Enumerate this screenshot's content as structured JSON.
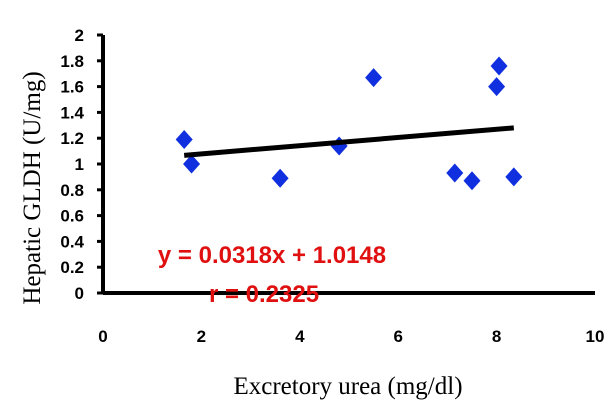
{
  "chart_data": {
    "type": "scatter",
    "xlabel": "Excretory urea (mg/dl)",
    "ylabel": "Hepatic GLDH (U/mg)",
    "xlim": [
      0,
      10
    ],
    "ylim": [
      0,
      2
    ],
    "x_ticks": [
      "0",
      "2",
      "4",
      "6",
      "8",
      "10"
    ],
    "y_ticks": [
      "0",
      "0.2",
      "0.4",
      "0.6",
      "0.8",
      "1",
      "1.2",
      "1.4",
      "1.6",
      "1.8",
      "2"
    ],
    "series": [
      {
        "marker": "diamond",
        "color": "#1030e0",
        "points": [
          {
            "x": 1.65,
            "y": 1.19
          },
          {
            "x": 1.8,
            "y": 1.0
          },
          {
            "x": 3.6,
            "y": 0.89
          },
          {
            "x": 4.8,
            "y": 1.14
          },
          {
            "x": 5.5,
            "y": 1.67
          },
          {
            "x": 7.15,
            "y": 0.93
          },
          {
            "x": 7.5,
            "y": 0.87
          },
          {
            "x": 8.0,
            "y": 1.6
          },
          {
            "x": 8.05,
            "y": 1.76
          },
          {
            "x": 8.35,
            "y": 0.9
          }
        ]
      }
    ],
    "trendline": {
      "slope": 0.0318,
      "intercept": 1.0148,
      "x_range": [
        1.65,
        8.35
      ],
      "color": "#000000"
    },
    "equation_text": "y = 0.0318x + 1.0148",
    "r_text": "r = 0.2325",
    "annotation_color": "#e01010",
    "grid": false
  }
}
